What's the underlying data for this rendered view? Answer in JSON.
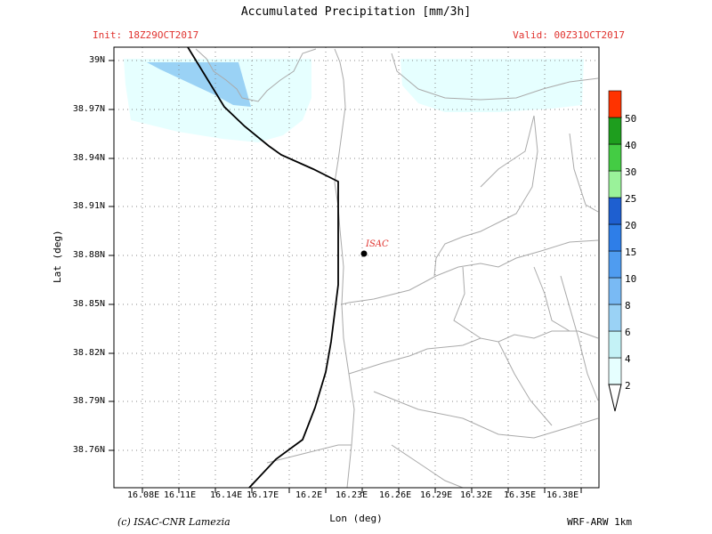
{
  "header": {
    "title": "Accumulated Precipitation [mm/3h]",
    "init": "Init: 18Z29OCT2017",
    "valid": "Valid: 00Z31OCT2017"
  },
  "axes": {
    "xlabel": "Lon (deg)",
    "ylabel": "Lat (deg)",
    "x_ticks": [
      "16.08E",
      "16.11E",
      "16.14E",
      "16.17E",
      "16.2E",
      "16.23E",
      "16.26E",
      "16.29E",
      "16.32E",
      "16.35E",
      "16.38E"
    ],
    "y_ticks": [
      "39N",
      "38.97N",
      "38.94N",
      "38.91N",
      "38.88N",
      "38.85N",
      "38.82N",
      "38.79N",
      "38.76N"
    ]
  },
  "station": {
    "label": "ISAC",
    "color": "#e0322e"
  },
  "colorbar": {
    "levels": [
      "2",
      "4",
      "6",
      "8",
      "10",
      "15",
      "20",
      "25",
      "30",
      "40",
      "50"
    ],
    "colors": [
      "#e6ffff",
      "#c4f2f6",
      "#9ad2f5",
      "#79baf4",
      "#4f9cf0",
      "#2e7ee8",
      "#1e5fd0",
      "#9af29a",
      "#44cc44",
      "#1e9e1e",
      "#ff3300"
    ],
    "cap_top_color": "#a0a0a0",
    "cap_bottom_color": "#ffffff"
  },
  "footer": {
    "credit": "(c) ISAC-CNR Lamezia",
    "model": "WRF-ARW 1km"
  }
}
